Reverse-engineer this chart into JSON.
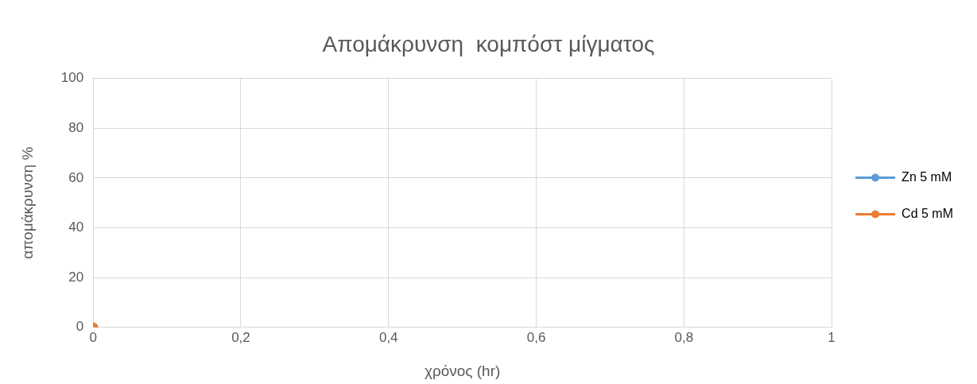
{
  "chart_data": {
    "type": "line",
    "title": "Απομάκρυνση  κομπόστ μίγματος",
    "xlabel": "χρόνος (hr)",
    "ylabel": "απομάκρυνση %",
    "series": [
      {
        "name": "Zn 5 mM",
        "color": "#5b9bd5",
        "x": [
          0
        ],
        "values": [
          0
        ]
      },
      {
        "name": "Cd 5 mM",
        "color": "#ed7d31",
        "x": [
          0
        ],
        "values": [
          0
        ]
      }
    ],
    "xlim": [
      0,
      1
    ],
    "xticks": [
      0,
      {
        "value": 0.2,
        "label": "0,2"
      },
      {
        "value": 0.4,
        "label": "0,4"
      },
      {
        "value": 0.6,
        "label": "0,6"
      },
      {
        "value": 0.8,
        "label": "0,8"
      },
      1
    ],
    "ylim": [
      0,
      100
    ],
    "yticks": [
      0,
      20,
      40,
      60,
      80,
      100
    ],
    "grid": true,
    "legend": "right",
    "marker": "circle",
    "line_style": "solid"
  }
}
